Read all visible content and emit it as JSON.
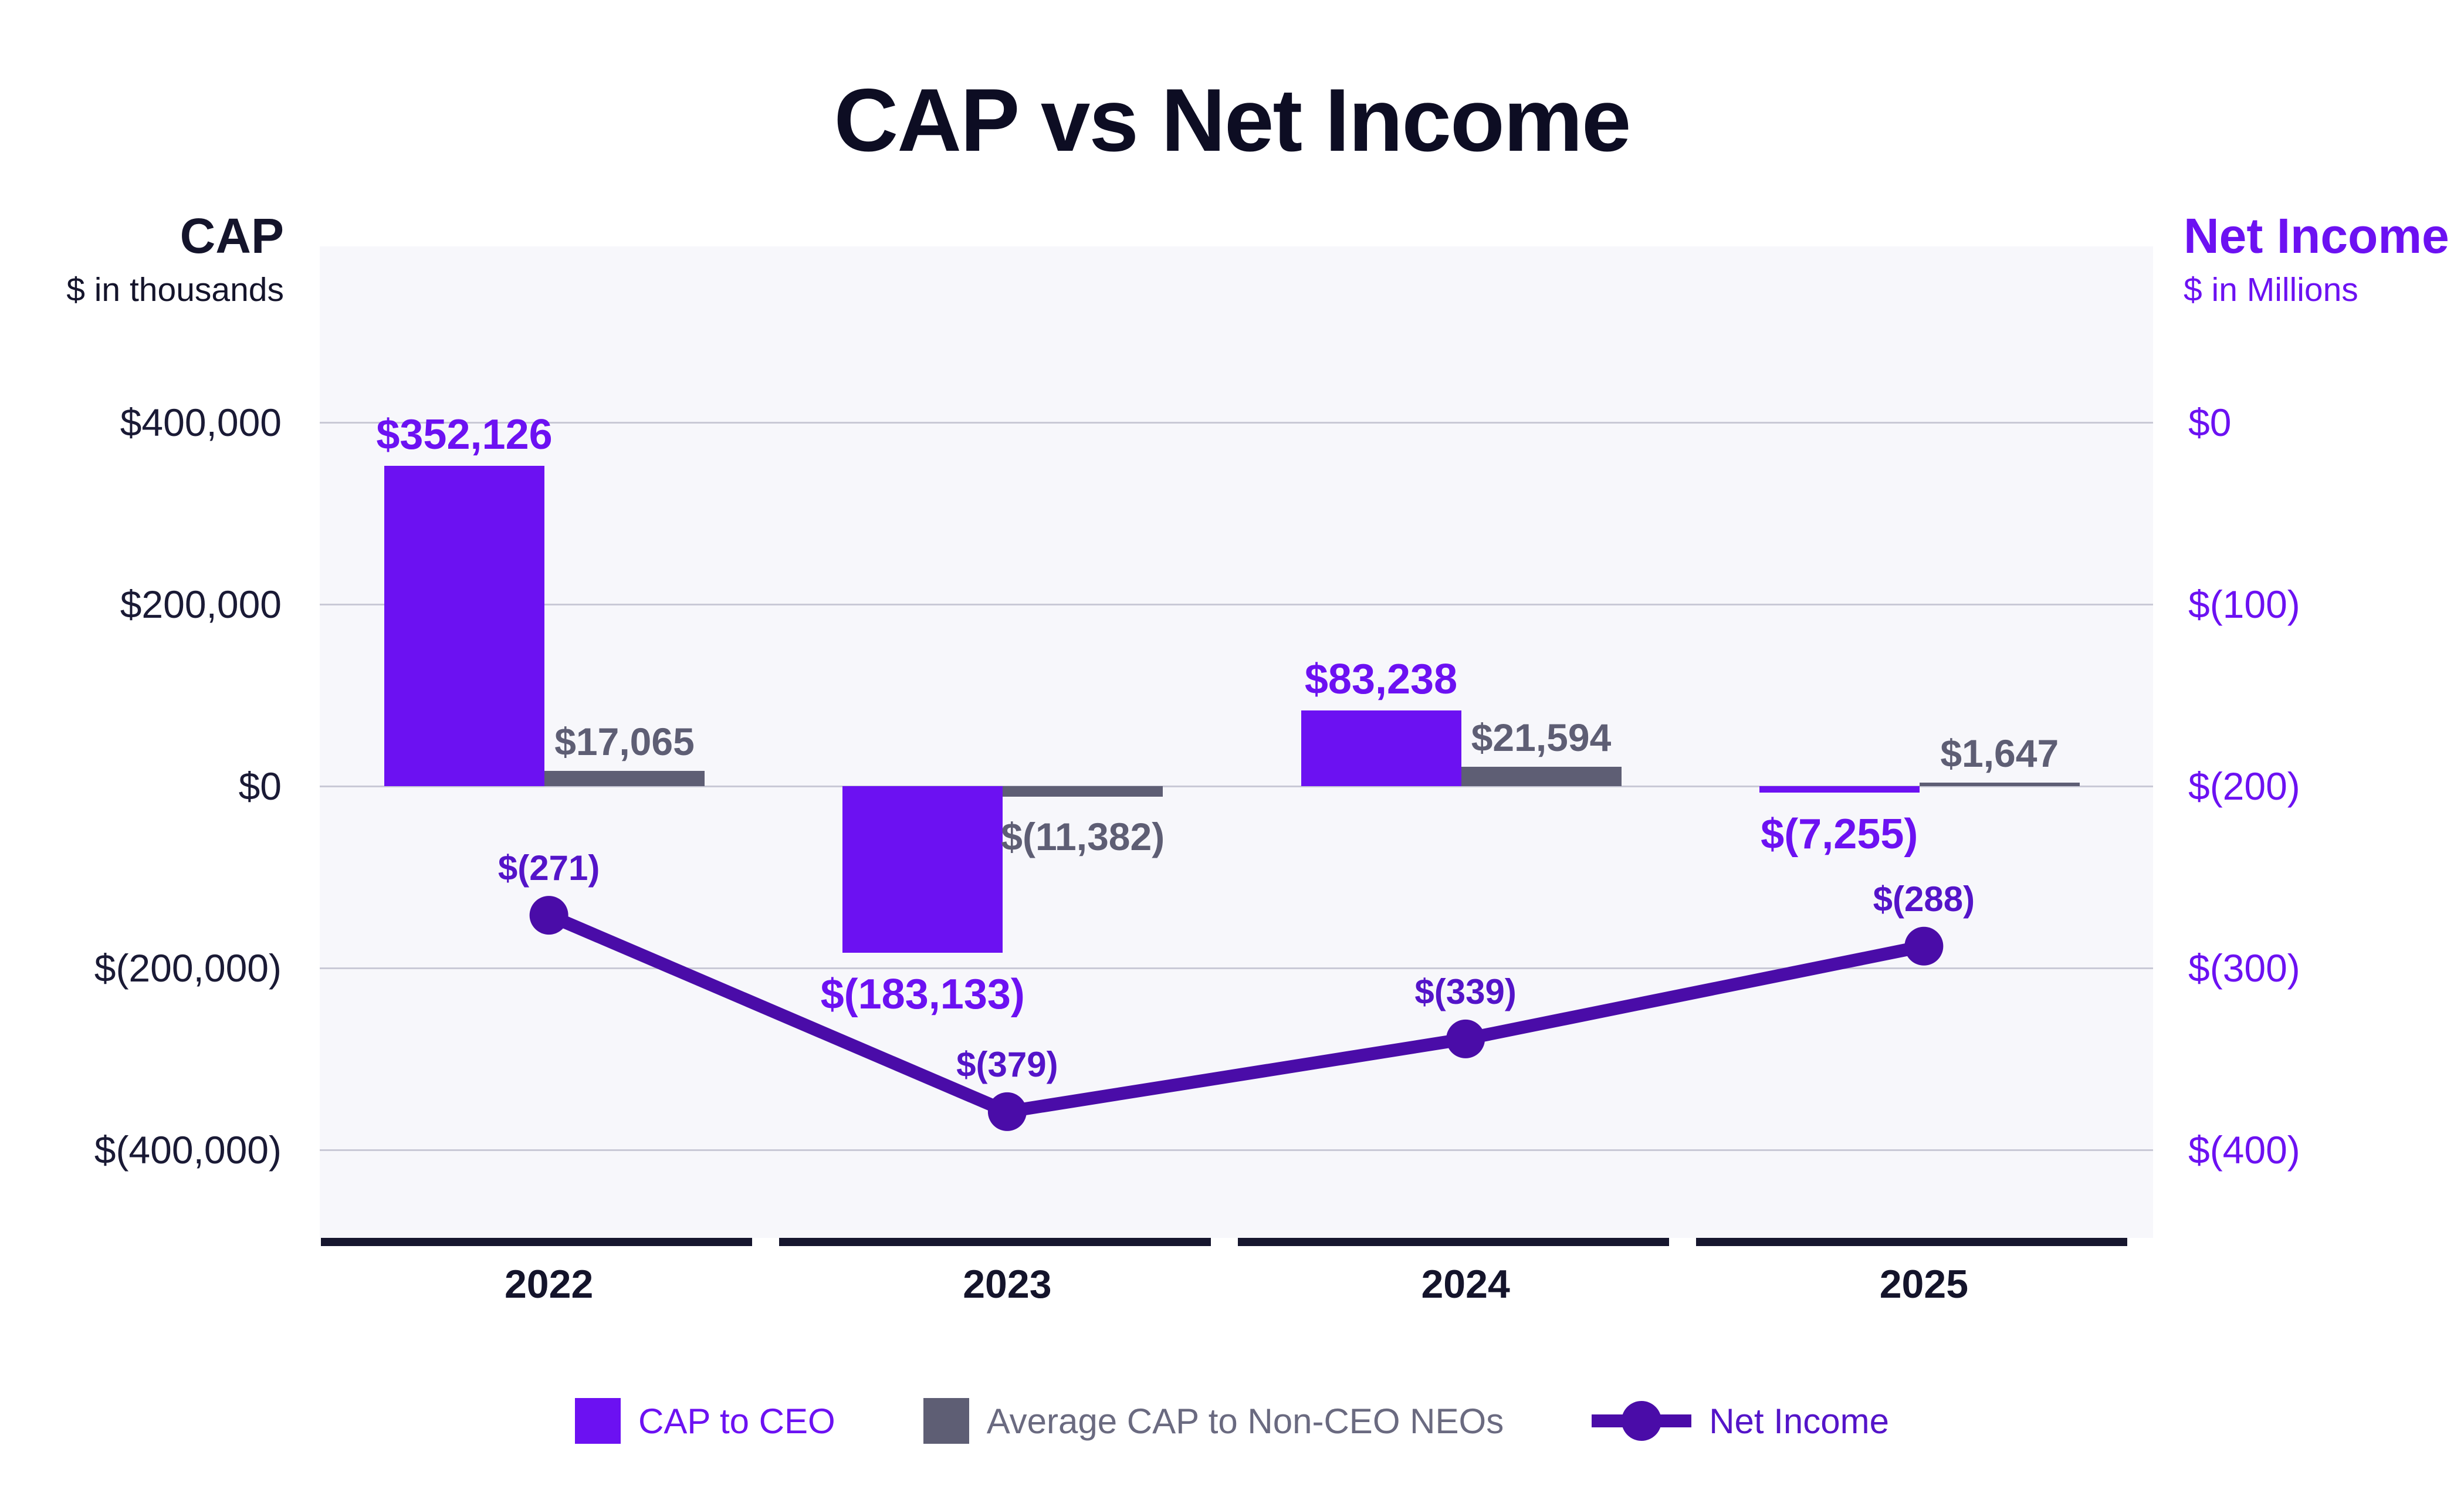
{
  "title": "CAP vs Net Income",
  "left_axis": {
    "title": "CAP",
    "subtitle": "$ in thousands",
    "ticks": [
      "$400,000",
      "$200,000",
      "$0",
      "$(200,000)",
      "$(400,000)"
    ],
    "range": [
      -400000,
      400000
    ]
  },
  "right_axis": {
    "title": "Net Income",
    "subtitle": "$ in Millions",
    "ticks": [
      "$0",
      "$(100)",
      "$(200)",
      "$(300)",
      "$(400)"
    ],
    "range": [
      -400,
      0
    ]
  },
  "legend": {
    "items": [
      {
        "label": "CAP to CEO",
        "marker": "square",
        "color": "#6c11f2",
        "text_color": "#6c11f2"
      },
      {
        "label": "Average CAP to Non-CEO NEOs",
        "marker": "square",
        "color": "#5e5e74",
        "text_color": "#6a6a80"
      },
      {
        "label": "Net Income",
        "marker": "line-dot",
        "color": "#4a0ca8",
        "text_color": "#5414c9"
      }
    ]
  },
  "chart_data": {
    "type": "bar+line combo",
    "title": "CAP vs Net Income",
    "categories": [
      "2022",
      "2023",
      "2024",
      "2025"
    ],
    "series": [
      {
        "name": "CAP to CEO",
        "type": "bar",
        "axis": "left",
        "color": "#6c11f2",
        "values": [
          352126,
          -183133,
          83238,
          -7255
        ],
        "labels": [
          "$352,126",
          "$(183,133)",
          "$83,238",
          "$(7,255)"
        ]
      },
      {
        "name": "Average CAP to Non-CEO NEOs",
        "type": "bar",
        "axis": "left",
        "color": "#5e5e74",
        "values": [
          17065,
          -11382,
          21594,
          1647
        ],
        "labels": [
          "$17,065",
          "$(11,382)",
          "$21,594",
          "$1,647"
        ]
      },
      {
        "name": "Net Income",
        "type": "line",
        "axis": "right",
        "color": "#4a0ca8",
        "values": [
          -271,
          -379,
          -339,
          -288
        ],
        "labels": [
          "$(271)",
          "$(379)",
          "$(339)",
          "$(288)"
        ]
      }
    ],
    "left_axis_label": "CAP ($ in thousands)",
    "right_axis_label": "Net Income ($ in Millions)",
    "left_tick_values": [
      400000,
      200000,
      0,
      -200000,
      -400000
    ],
    "right_tick_values": [
      0,
      -100,
      -200,
      -300,
      -400
    ],
    "grid": true,
    "legend_position": "bottom"
  }
}
